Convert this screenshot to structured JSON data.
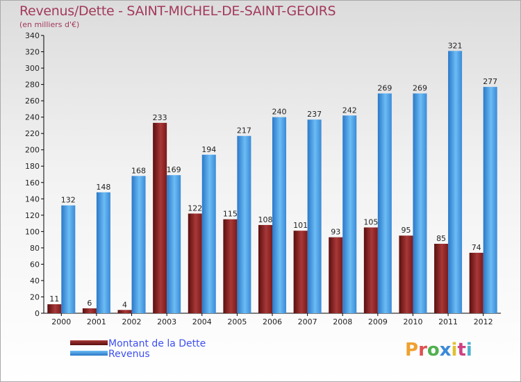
{
  "title": "Revenus/Dette - SAINT-MICHEL-DE-SAINT-GEOIRS",
  "subtitle": "(en milliers d'€)",
  "logo_text": "Proxiti",
  "colors": {
    "debt": "#7a1a1a",
    "debt_light": "#a83838",
    "revenue": "#3a8ad8",
    "revenue_light": "#6cbcf4",
    "title": "#a23a5a",
    "legend_text": "#3d4ff0",
    "logo": [
      "#f0a030",
      "#e05050",
      "#50b050",
      "#3a8ad8",
      "#e0c030",
      "#d04080",
      "#50b0d0"
    ]
  },
  "chart_data": {
    "type": "bar",
    "title": "Revenus/Dette - SAINT-MICHEL-DE-SAINT-GEOIRS",
    "subtitle": "(en milliers d'€)",
    "categories": [
      "2000",
      "2001",
      "2002",
      "2003",
      "2004",
      "2005",
      "2006",
      "2007",
      "2008",
      "2009",
      "2010",
      "2011",
      "2012"
    ],
    "series": [
      {
        "name": "Montant de la Dette",
        "values": [
          11,
          6,
          4,
          233,
          122,
          115,
          108,
          101,
          93,
          105,
          95,
          85,
          74
        ]
      },
      {
        "name": "Revenus",
        "values": [
          132,
          148,
          168,
          169,
          194,
          217,
          240,
          237,
          242,
          269,
          269,
          321,
          277
        ]
      }
    ],
    "ylim": [
      0,
      340
    ],
    "yticks": [
      0,
      20,
      40,
      60,
      80,
      100,
      120,
      140,
      160,
      180,
      200,
      220,
      240,
      260,
      280,
      300,
      320,
      340
    ],
    "grid": false,
    "legend": "bottom-left"
  }
}
